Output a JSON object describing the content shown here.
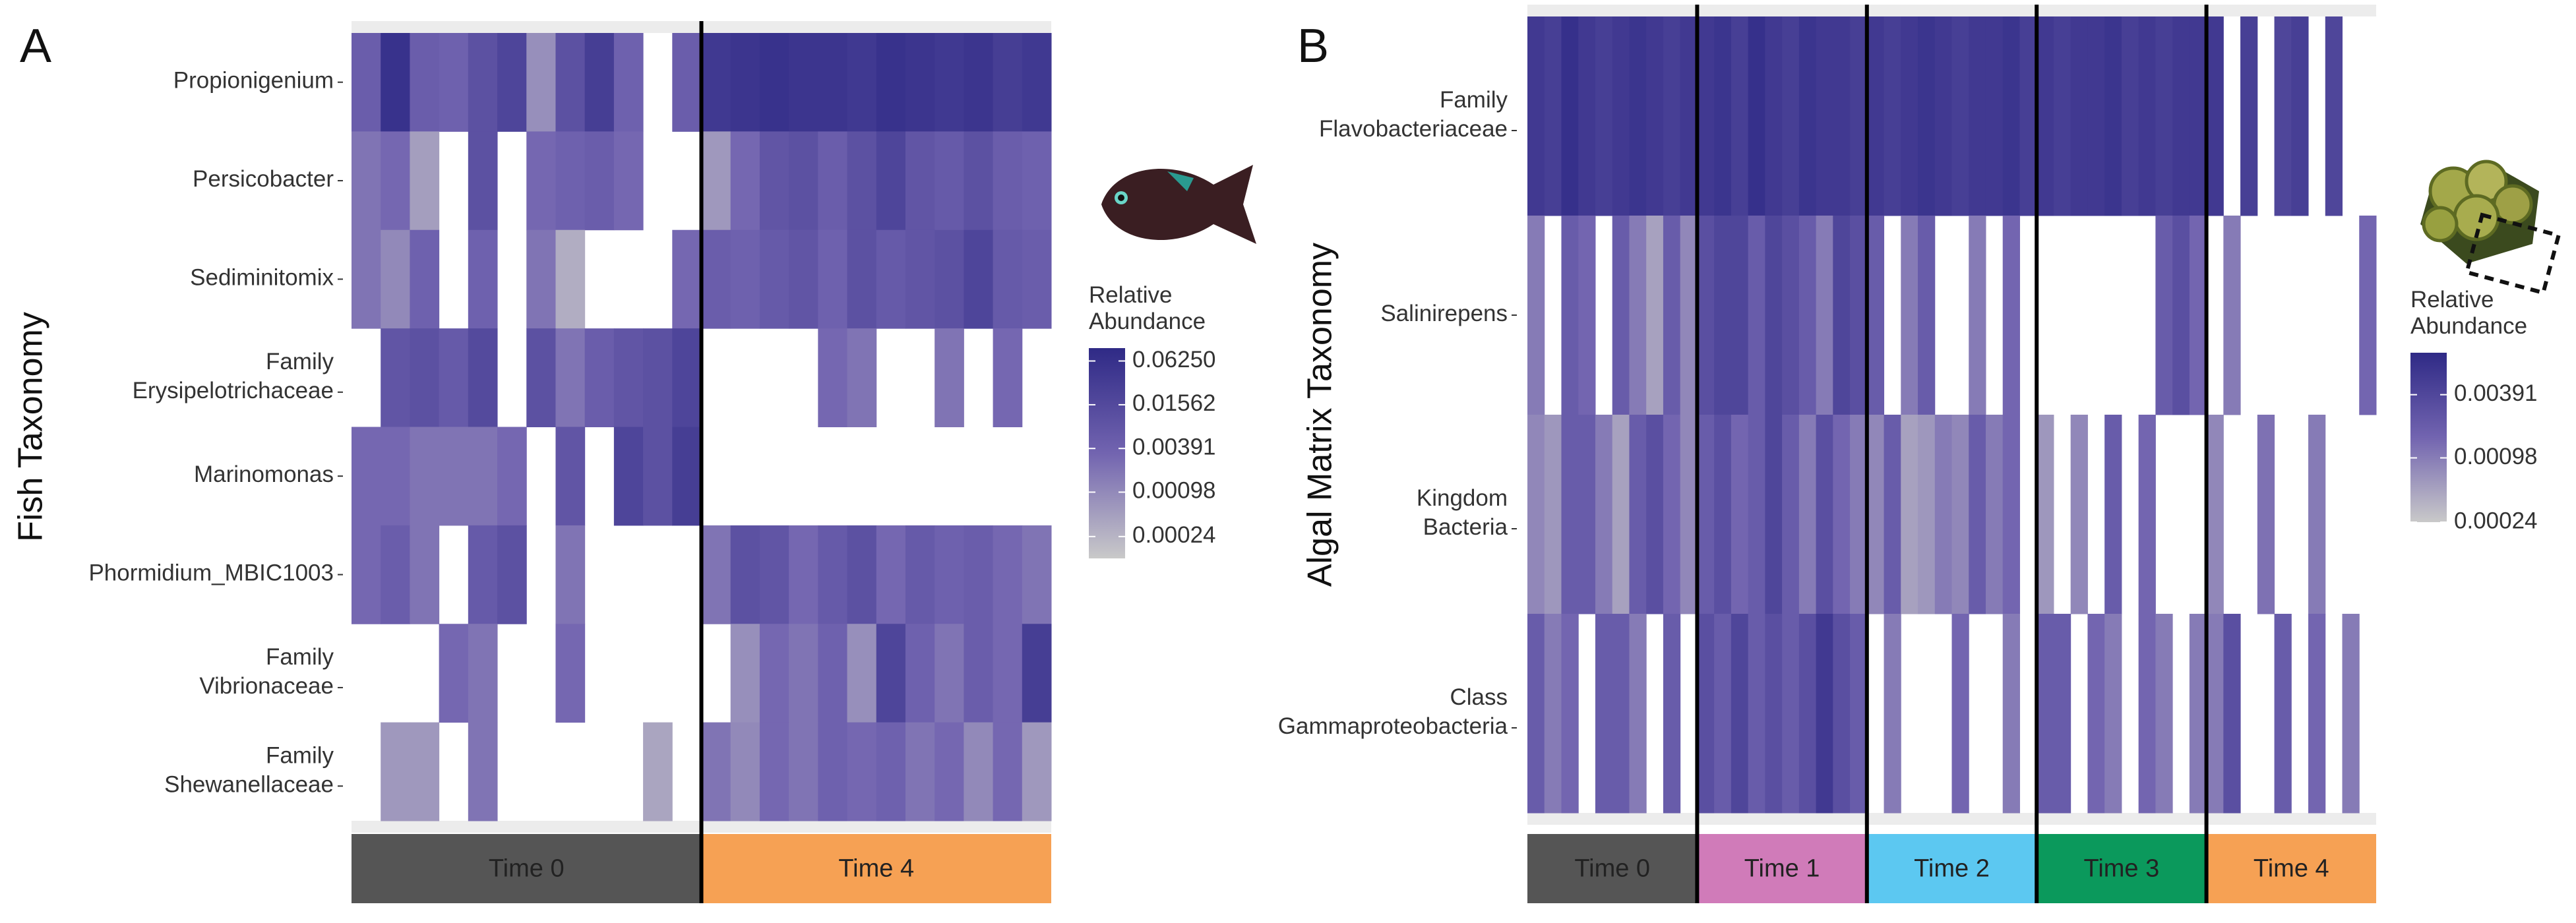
{
  "chart_data": [
    {
      "type": "heatmap",
      "panel_label": "A",
      "ylabel": "Fish Taxonomy",
      "legend_title": [
        "Relative",
        "Abundance"
      ],
      "clim": [
        0.00012,
        0.094
      ],
      "cticks": [
        {
          "value": 0.0625,
          "label": "0.06250"
        },
        0.01562,
        0.00391,
        0.00098,
        0.00024
      ],
      "colors": [
        "#c9c9c9",
        "#7264b0",
        "#2f2a86"
      ],
      "groups": [
        {
          "name": "Time 0",
          "color": "#555555"
        },
        {
          "name": "Time 4",
          "color": "#f6a154"
        }
      ],
      "rows": [
        {
          "label": [
            "Propionigenium"
          ],
          "values": [
            [
              0.005,
              0.06,
              0.005,
              0.004,
              0.01,
              0.02,
              0.0008,
              0.01,
              0.03,
              0.004,
              null,
              0.005
            ],
            [
              0.04,
              0.05,
              0.06,
              0.05,
              0.05,
              0.04,
              0.06,
              0.05,
              0.04,
              0.05,
              0.03,
              0.04
            ]
          ]
        },
        {
          "label": [
            "Persicobacter"
          ],
          "values": [
            [
              0.002,
              0.003,
              0.0005,
              null,
              0.01,
              null,
              0.003,
              0.004,
              0.005,
              0.003,
              null,
              null
            ],
            [
              0.0006,
              0.003,
              0.008,
              0.01,
              0.005,
              0.01,
              0.02,
              0.008,
              0.006,
              0.01,
              0.005,
              0.004
            ]
          ]
        },
        {
          "label": [
            "Sediminitomix"
          ],
          "values": [
            [
              0.002,
              0.001,
              0.004,
              null,
              0.004,
              null,
              0.002,
              0.0003,
              null,
              null,
              null,
              0.003
            ],
            [
              0.005,
              0.004,
              0.006,
              0.008,
              0.004,
              0.01,
              0.006,
              0.008,
              0.01,
              0.02,
              0.006,
              0.005
            ]
          ]
        },
        {
          "label": [
            "Family",
            "Erysipelotrichaceae"
          ],
          "values": [
            [
              null,
              0.008,
              0.01,
              0.006,
              0.015,
              null,
              0.01,
              0.002,
              0.005,
              0.008,
              0.01,
              0.02
            ],
            [
              null,
              null,
              null,
              null,
              0.003,
              0.002,
              null,
              null,
              0.002,
              null,
              0.003,
              null
            ]
          ]
        },
        {
          "label": [
            "Marinomonas"
          ],
          "values": [
            [
              0.003,
              0.003,
              0.002,
              0.002,
              0.002,
              0.003,
              null,
              0.008,
              null,
              0.02,
              0.01,
              0.03
            ],
            [
              null,
              null,
              null,
              null,
              null,
              null,
              null,
              null,
              null,
              null,
              null,
              null
            ]
          ]
        },
        {
          "label": [
            "Phormidium_MBIC1003"
          ],
          "values": [
            [
              0.003,
              0.005,
              0.002,
              null,
              0.006,
              0.01,
              null,
              0.002,
              null,
              null,
              null,
              null
            ],
            [
              0.002,
              0.01,
              0.008,
              0.003,
              0.006,
              0.01,
              0.003,
              0.006,
              0.004,
              0.005,
              0.003,
              0.002
            ]
          ]
        },
        {
          "label": [
            "Family",
            "Vibrionaceae"
          ],
          "values": [
            [
              null,
              null,
              null,
              0.003,
              0.002,
              null,
              null,
              0.003,
              null,
              null,
              null,
              null
            ],
            [
              null,
              0.0008,
              0.003,
              0.002,
              0.004,
              0.0008,
              0.02,
              0.004,
              0.002,
              0.005,
              0.003,
              0.03
            ]
          ]
        },
        {
          "label": [
            "Family",
            "Shewanellaceae"
          ],
          "values": [
            [
              null,
              0.0006,
              0.0006,
              null,
              0.002,
              null,
              null,
              null,
              null,
              null,
              0.0004,
              null
            ],
            [
              0.002,
              0.001,
              0.003,
              0.002,
              0.004,
              0.003,
              0.004,
              0.002,
              0.003,
              0.001,
              0.003,
              0.0006
            ]
          ]
        }
      ]
    },
    {
      "type": "heatmap",
      "panel_label": "B",
      "ylabel": "Algal Matrix Taxonomy",
      "legend_title": [
        "Relative",
        "Abundance"
      ],
      "clim": [
        0.00024,
        0.0098
      ],
      "cticks": [
        0.00391,
        0.00098,
        0.00024
      ],
      "colors": [
        "#c9c9c9",
        "#7264b0",
        "#2f2a86"
      ],
      "groups": [
        {
          "name": "Time 0",
          "color": "#555555"
        },
        {
          "name": "Time 1",
          "color": "#d07bb9"
        },
        {
          "name": "Time 2",
          "color": "#5cc8f1"
        },
        {
          "name": "Time 3",
          "color": "#0b995c"
        },
        {
          "name": "Time 4",
          "color": "#f6a154"
        }
      ],
      "rows": [
        {
          "label": [
            "Family",
            "Flavobacteriaceae"
          ],
          "values": [
            [
              0.006,
              0.005,
              0.008,
              0.006,
              0.005,
              0.006,
              0.007,
              0.006,
              0.005,
              0.006
            ],
            [
              0.006,
              0.007,
              0.005,
              0.008,
              0.006,
              0.005,
              0.007,
              0.006,
              0.006,
              0.005
            ],
            [
              0.006,
              0.005,
              0.006,
              0.007,
              0.006,
              0.005,
              0.006,
              0.006,
              0.007,
              0.005
            ],
            [
              0.006,
              0.005,
              0.006,
              0.006,
              0.007,
              0.005,
              0.006,
              0.005,
              0.006,
              0.006
            ],
            [
              0.006,
              null,
              0.005,
              null,
              0.004,
              0.005,
              null,
              0.004,
              null,
              null
            ]
          ]
        },
        {
          "label": [
            "Salinirepens"
          ],
          "values": [
            [
              0.001,
              null,
              0.002,
              0.0015,
              null,
              0.002,
              0.001,
              0.0005,
              0.002,
              0.0008
            ],
            [
              0.003,
              0.004,
              0.004,
              0.002,
              0.004,
              0.003,
              0.002,
              0.001,
              0.004,
              0.003
            ],
            [
              0.002,
              null,
              0.001,
              0.002,
              null,
              null,
              0.001,
              null,
              0.0015,
              null
            ],
            [
              null,
              null,
              null,
              null,
              null,
              null,
              null,
              0.002,
              0.003,
              0.0015
            ],
            [
              null,
              0.001,
              null,
              null,
              null,
              null,
              null,
              null,
              null,
              0.0015
            ]
          ]
        },
        {
          "label": [
            "Kingdom",
            "Bacteria"
          ],
          "values": [
            [
              0.0008,
              0.0006,
              0.002,
              0.002,
              0.001,
              0.0005,
              0.002,
              0.003,
              0.0015,
              0.0008
            ],
            [
              0.002,
              0.003,
              0.0015,
              0.002,
              0.004,
              0.002,
              0.001,
              0.003,
              0.0015,
              0.001
            ],
            [
              0.0008,
              0.002,
              0.0005,
              0.0006,
              0.001,
              0.0008,
              0.002,
              0.001,
              0.0015,
              null
            ],
            [
              0.0006,
              null,
              0.0008,
              null,
              0.002,
              null,
              0.0015,
              null,
              null,
              null
            ],
            [
              0.0008,
              null,
              null,
              0.0012,
              null,
              null,
              0.001,
              null,
              null,
              null
            ]
          ]
        },
        {
          "label": [
            "Class",
            "Gammaproteobacteria"
          ],
          "values": [
            [
              0.002,
              0.001,
              0.0015,
              null,
              0.002,
              0.002,
              0.001,
              null,
              0.002,
              null
            ],
            [
              0.003,
              0.002,
              0.004,
              0.002,
              0.003,
              0.002,
              0.003,
              0.006,
              0.003,
              0.002
            ],
            [
              null,
              0.001,
              null,
              null,
              null,
              0.0015,
              null,
              null,
              0.001,
              null
            ],
            [
              0.002,
              0.002,
              null,
              0.0015,
              0.001,
              null,
              0.0015,
              0.001,
              null,
              0.001
            ],
            [
              0.001,
              0.003,
              null,
              null,
              0.002,
              null,
              0.0015,
              null,
              0.001,
              null
            ]
          ]
        }
      ]
    }
  ]
}
